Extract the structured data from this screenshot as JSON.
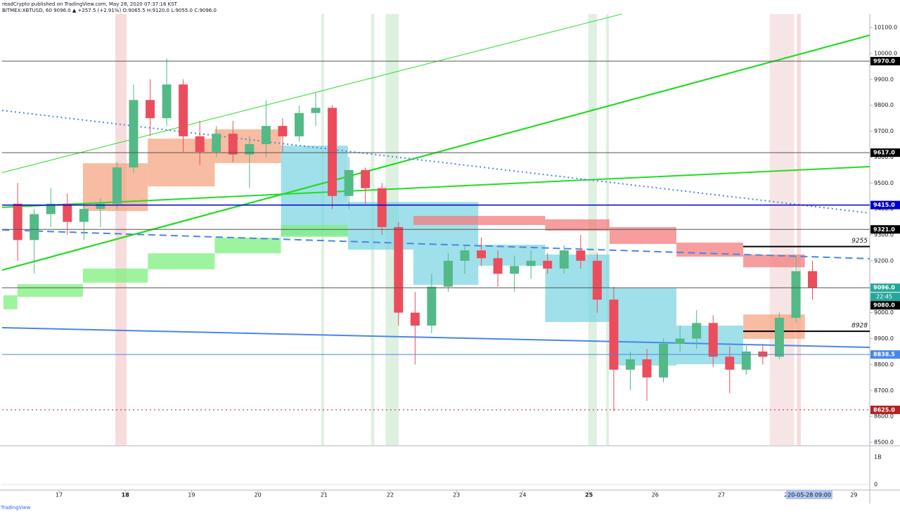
{
  "chart_data": {
    "type": "candlestick",
    "header": [
      "readCrypto published on TradingView.com, May 28, 2020 07:37:16 KST",
      "BITMEX:XBTUSD, 60  9096.0 ▲ +257.5 (+2.91%) O:9065.5 H:9120.0 L:9055.0 C:9096.0"
    ],
    "x": [
      16.25,
      16.5,
      16.75,
      17,
      17.25,
      17.5,
      17.75,
      18,
      18.25,
      18.5,
      18.75,
      19,
      19.25,
      19.5,
      19.75,
      20,
      20.25,
      20.5,
      20.75,
      21,
      21.25,
      21.5,
      21.75,
      22,
      22.25,
      22.5,
      22.75,
      23,
      23.25,
      23.5,
      23.75,
      24,
      24.25,
      24.5,
      24.75,
      25,
      25.25,
      25.5,
      25.75,
      26,
      26.25,
      26.5,
      26.75,
      27,
      27.25,
      27.5,
      27.75,
      28,
      28.25
    ],
    "open": [
      9420,
      9280,
      9380,
      9420,
      9350,
      9400,
      9420,
      9560,
      9820,
      9750,
      9880,
      9680,
      9620,
      9690,
      9610,
      9650,
      9720,
      9680,
      9770,
      9790,
      9450,
      9550,
      9480,
      9330,
      9000,
      8950,
      9100,
      9200,
      9240,
      9210,
      9150,
      9180,
      9200,
      9170,
      9240,
      9200,
      9050,
      8780,
      8820,
      8750,
      8880,
      8900,
      8960,
      8830,
      8780,
      8850,
      8830,
      8980,
      9160
    ],
    "high": [
      9500,
      9400,
      9480,
      9460,
      9420,
      9440,
      9580,
      9880,
      9900,
      9980,
      9900,
      9740,
      9720,
      9740,
      9680,
      9820,
      9750,
      9800,
      9850,
      9800,
      9600,
      9560,
      9500,
      9350,
      9080,
      9150,
      9230,
      9260,
      9290,
      9240,
      9220,
      9240,
      9230,
      9260,
      9300,
      9230,
      9100,
      8850,
      8860,
      8900,
      8950,
      9010,
      8990,
      8870,
      8880,
      8880,
      9000,
      9220,
      9200
    ],
    "low": [
      9200,
      9150,
      9330,
      9300,
      9280,
      9330,
      9400,
      9540,
      9680,
      9720,
      9620,
      9570,
      9600,
      9580,
      9480,
      9600,
      9620,
      9660,
      9720,
      9400,
      9400,
      9420,
      9300,
      8950,
      8800,
      8920,
      9080,
      9150,
      9180,
      9100,
      9080,
      9130,
      9150,
      9150,
      9170,
      9000,
      8620,
      8700,
      8660,
      8730,
      8850,
      8860,
      8790,
      8690,
      8760,
      8800,
      8820,
      8960,
      9050
    ],
    "close": [
      9280,
      9380,
      9420,
      9350,
      9400,
      9420,
      9560,
      9820,
      9750,
      9880,
      9680,
      9620,
      9690,
      9610,
      9650,
      9720,
      9680,
      9770,
      9790,
      9450,
      9550,
      9480,
      9330,
      9000,
      8950,
      9100,
      9200,
      9240,
      9210,
      9150,
      9180,
      9200,
      9170,
      9240,
      9200,
      9050,
      8780,
      8820,
      8750,
      8880,
      8900,
      8960,
      8830,
      8780,
      8850,
      8830,
      8980,
      9160,
      9096
    ],
    "up_color": "#53b987",
    "down_color": "#eb4d5c",
    "xlim": [
      16.14,
      29.24
    ],
    "xticks": [
      17,
      18,
      19,
      20,
      21,
      22,
      23,
      24,
      25,
      26,
      27,
      28,
      29
    ],
    "xticks_bold": [
      18,
      25
    ],
    "ylim": [
      8500,
      10100
    ],
    "yticks": [
      {
        "value": 8500,
        "label": "8500.0"
      },
      {
        "value": 8600,
        "label": "8600.0"
      },
      {
        "value": 8700,
        "label": "8700.0"
      },
      {
        "value": 8800,
        "label": "8800.0"
      },
      {
        "value": 8900,
        "label": "8900.0"
      },
      {
        "value": 9000,
        "label": "9000.0"
      },
      {
        "value": 9100,
        "label": "9100.0"
      },
      {
        "value": 9200,
        "label": "9200.0"
      },
      {
        "value": 9300,
        "label": "9300.0"
      },
      {
        "value": 9400,
        "label": "9400.0"
      },
      {
        "value": 9500,
        "label": "9500.0"
      },
      {
        "value": 9600,
        "label": "9600.0"
      },
      {
        "value": 9700,
        "label": "9700.0"
      },
      {
        "value": 9800,
        "label": "9800.0"
      },
      {
        "value": 9900,
        "label": "9900.0"
      },
      {
        "value": 10000,
        "label": "10000.0"
      },
      {
        "value": 10100,
        "label": "10100.0"
      }
    ],
    "levels": [
      {
        "value": 9970,
        "label": "9970.0",
        "color": "#555555",
        "label_bg": "#000000",
        "style": "solid"
      },
      {
        "value": 9617,
        "label": "9617.0",
        "color": "#555555",
        "label_bg": "#000000",
        "style": "solid"
      },
      {
        "value": 9415,
        "label": "9415.0",
        "color": "#0000cc",
        "label_bg": "#0000cc",
        "style": "solid"
      },
      {
        "value": 9321,
        "label": "9321.0",
        "color": "#555555",
        "label_bg": "#000000",
        "style": "solid"
      },
      {
        "value": 9096,
        "label": "9096.0",
        "color": "#555555",
        "label_bg": "#26a69a",
        "style": "solid"
      },
      {
        "value": 9080,
        "label": "9080.0",
        "color": "#555555",
        "label_bg": "#000000",
        "style": "none"
      },
      {
        "value": 8838.5,
        "label": "8838.5",
        "color": "#4a86e8",
        "label_bg": "#4a86e8",
        "style": "solid"
      },
      {
        "value": 8625,
        "label": "8625.0",
        "color": "#b22222",
        "label_bg": "#b22222",
        "style": "dotted"
      }
    ],
    "countdown": "22:45",
    "annotations": [
      {
        "value": 9255,
        "x_start": 27.33
      },
      {
        "value": 8928,
        "x_start": 27.33
      }
    ],
    "trendlines": [
      {
        "x": [
          16.14,
          25.5
        ],
        "y": [
          9540,
          10152
        ],
        "color": "#22dd22",
        "width": 1,
        "style": "solid"
      },
      {
        "x": [
          16.14,
          29.24
        ],
        "y": [
          9164,
          10070
        ],
        "color": "#22dd22",
        "width": 2.2,
        "style": "solid"
      },
      {
        "x": [
          16.14,
          29.24
        ],
        "y": [
          9406,
          9563
        ],
        "color": "#22dd22",
        "width": 2,
        "style": "solid"
      },
      {
        "x": [
          16.14,
          29.24
        ],
        "y": [
          9780,
          9384
        ],
        "color": "#4a86e8",
        "width": 2,
        "style": "dotted"
      },
      {
        "x": [
          16.14,
          29.24
        ],
        "y": [
          9319,
          9208
        ],
        "color": "#4a86e8",
        "width": 2,
        "style": "dashed"
      },
      {
        "x": [
          16.14,
          29.24
        ],
        "y": [
          8942,
          8866
        ],
        "color": "#4a86e8",
        "width": 2,
        "style": "solid"
      }
    ],
    "highlights": [
      {
        "x": [
          17.85,
          18.02
        ],
        "color": "#f2c4c4"
      },
      {
        "x": [
          20.96,
          21.0
        ],
        "color": "#c8e6c9"
      },
      {
        "x": [
          21.71,
          21.76
        ],
        "color": "#c8e6c9"
      },
      {
        "x": [
          21.93,
          22.13
        ],
        "color": "#c8e6c9"
      },
      {
        "x": [
          24.99,
          25.12
        ],
        "color": "#c8e6c9"
      },
      {
        "x": [
          25.26,
          25.3
        ],
        "color": "#c8e6c9"
      },
      {
        "x": [
          27.73,
          28.1
        ],
        "color": "#f2d4d4"
      },
      {
        "x": [
          28.14,
          28.2
        ],
        "color": "#f2c4c4"
      }
    ],
    "zones": [
      {
        "x": [
          17.36,
          18.34
        ],
        "y": [
          9392,
          9576
        ],
        "color": "#f4a582"
      },
      {
        "x": [
          18.34,
          19.35
        ],
        "y": [
          9487,
          9671
        ],
        "color": "#f4a582"
      },
      {
        "x": [
          19.35,
          20.35
        ],
        "y": [
          9577,
          9707
        ],
        "color": "#f4a582"
      },
      {
        "x": [
          20.35,
          21.36
        ],
        "y": [
          9297,
          9644
        ],
        "color": "#7fd6e3"
      },
      {
        "x": [
          21.36,
          22.35
        ],
        "y": [
          9243,
          9427
        ],
        "color": "#7fd6e3"
      },
      {
        "x": [
          22.35,
          23.33
        ],
        "y": [
          9107,
          9427
        ],
        "color": "#7fd6e3"
      },
      {
        "x": [
          23.33,
          24.34
        ],
        "y": [
          9181,
          9262
        ],
        "color": "#7fd6e3"
      },
      {
        "x": [
          24.34,
          25.31
        ],
        "y": [
          8964,
          9224
        ],
        "color": "#7fd6e3"
      },
      {
        "x": [
          25.31,
          26.32
        ],
        "y": [
          8796,
          9094
        ],
        "color": "#7fd6e3"
      },
      {
        "x": [
          26.32,
          27.33
        ],
        "y": [
          8801,
          8950
        ],
        "color": "#7fd6e3"
      },
      {
        "x": [
          22.35,
          23.33
        ],
        "y": [
          9338,
          9373
        ],
        "color": "#f47c7c"
      },
      {
        "x": [
          23.33,
          24.34
        ],
        "y": [
          9338,
          9373
        ],
        "color": "#f47c7c"
      },
      {
        "x": [
          24.34,
          25.31
        ],
        "y": [
          9316,
          9360
        ],
        "color": "#f47c7c"
      },
      {
        "x": [
          25.31,
          26.32
        ],
        "y": [
          9265,
          9330
        ],
        "color": "#f47c7c"
      },
      {
        "x": [
          26.32,
          27.33
        ],
        "y": [
          9216,
          9270
        ],
        "color": "#f47c7c"
      },
      {
        "x": [
          27.33,
          28.26
        ],
        "y": [
          9175,
          9224
        ],
        "color": "#f47c7c"
      },
      {
        "x": [
          16.16,
          16.37
        ],
        "y": [
          9013,
          9067
        ],
        "color": "#7df07d"
      },
      {
        "x": [
          16.37,
          17.36
        ],
        "y": [
          9061,
          9110
        ],
        "color": "#7df07d"
      },
      {
        "x": [
          17.36,
          18.34
        ],
        "y": [
          9116,
          9170
        ],
        "color": "#7df07d"
      },
      {
        "x": [
          18.34,
          19.35
        ],
        "y": [
          9167,
          9229
        ],
        "color": "#7df07d"
      },
      {
        "x": [
          19.35,
          20.35
        ],
        "y": [
          9229,
          9289
        ],
        "color": "#7df07d"
      },
      {
        "x": [
          20.35,
          21.36
        ],
        "y": [
          9292,
          9338
        ],
        "color": "#7df07d"
      },
      {
        "x": [
          27.33,
          28.26
        ],
        "y": [
          8899,
          8993
        ],
        "color": "#f4a582"
      }
    ],
    "panel_labels": [
      "1B",
      "0"
    ],
    "time_badge": "20-05-28  09:00",
    "footer": "TradingView"
  }
}
